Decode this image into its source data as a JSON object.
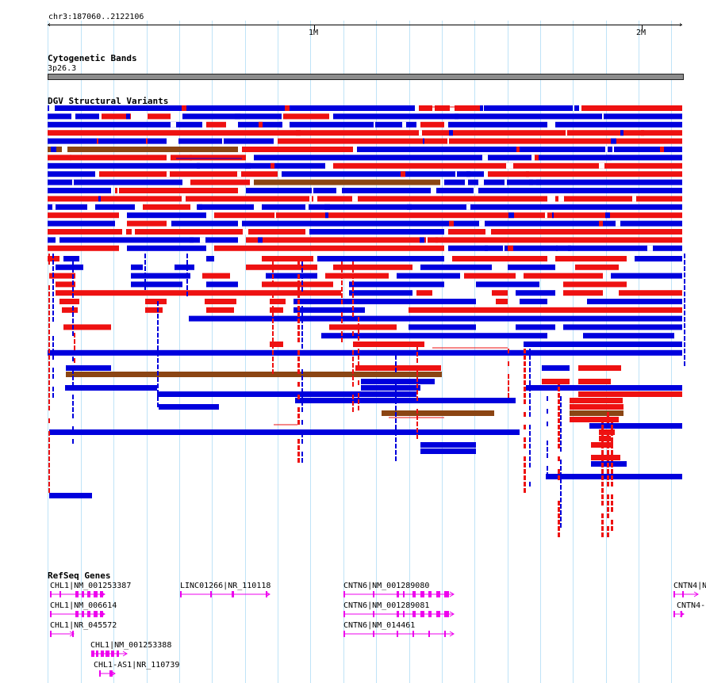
{
  "ruler": {
    "region": "chr3:187060..2122106",
    "ticks": [
      "1M",
      "2M"
    ]
  },
  "tracks": {
    "cytoband": {
      "title": "Cytogenetic Bands",
      "band": "3p26.3"
    },
    "dgv": {
      "title": "DGV Structural Variants"
    },
    "refseq": {
      "title": "RefSeq Genes",
      "genes": [
        {
          "label": "CHL1|NM_001253387"
        },
        {
          "label": "CHL1|NM_006614"
        },
        {
          "label": "CHL1|NR_045572"
        },
        {
          "label": "CHL1|NM_001253388"
        },
        {
          "label": "CHL1-AS1|NR_110739"
        },
        {
          "label": "LINC01266|NR_110118"
        },
        {
          "label": "CNTN6|NM_001289080"
        },
        {
          "label": "CNTN6|NM_001289081"
        },
        {
          "label": "CNTN6|NM_014461"
        },
        {
          "label": "CNTN4|N"
        },
        {
          "label": "CNTN4-"
        }
      ]
    }
  },
  "colors": {
    "loss": "#0000dd",
    "gain": "#ee1111",
    "gain_loss": "#8b4513",
    "gene": "#ee00ee",
    "gridline": "#bfe3f7",
    "cytoband": "#8c8c8c"
  }
}
